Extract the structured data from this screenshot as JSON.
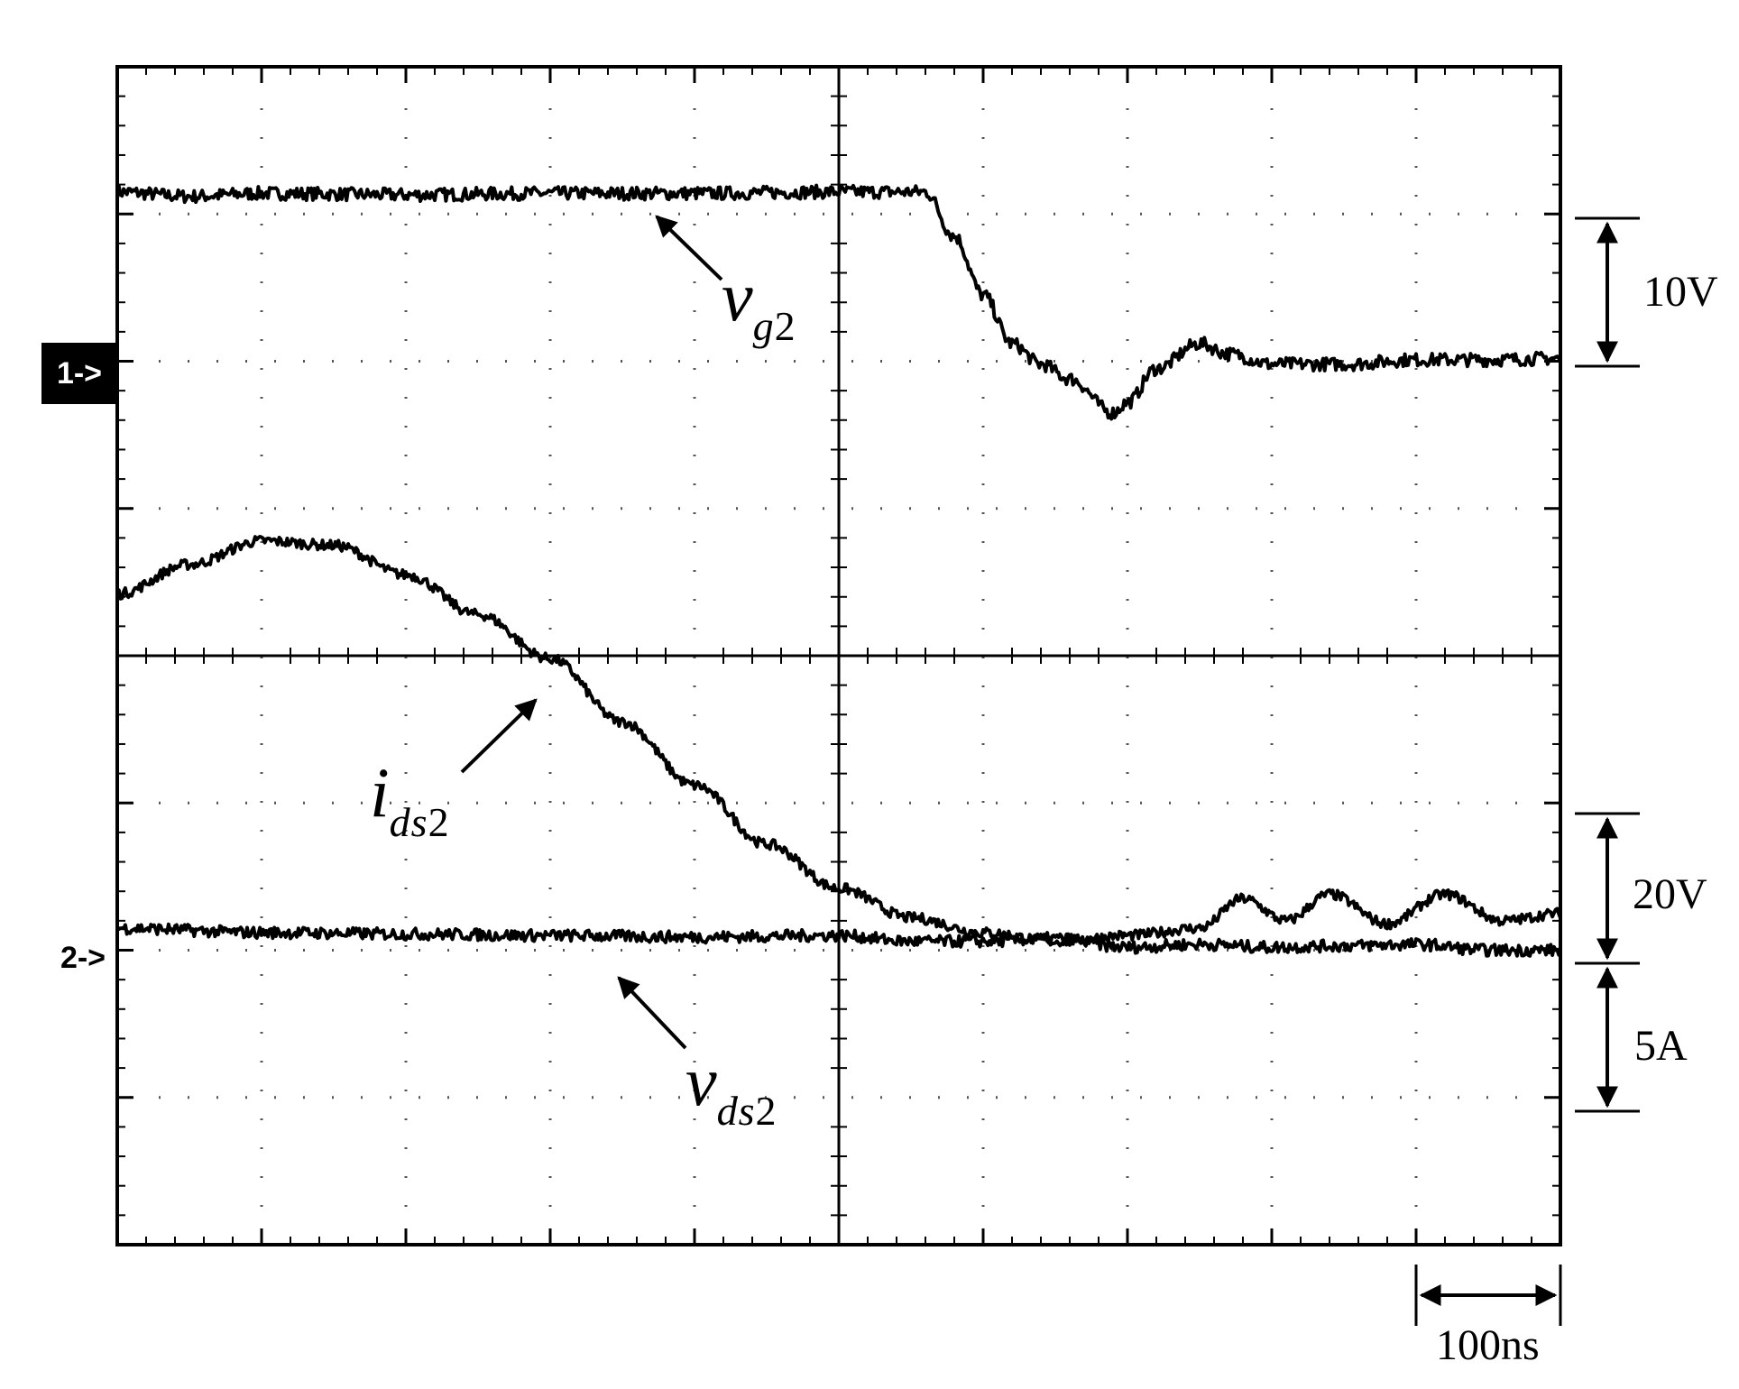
{
  "chart_data": {
    "type": "line",
    "divisions": {
      "x": 10,
      "y": 8,
      "minor_per_division": 5
    },
    "grid": true,
    "channel_markers": [
      {
        "label": "1->",
        "style": "inverted"
      },
      {
        "label": "2->",
        "style": "plain"
      }
    ],
    "series": [
      {
        "name": "v",
        "sub": "g",
        "num": "2",
        "scale": "10V/div",
        "reference_marker": "1->",
        "x_div": [
          0,
          0.5,
          1,
          2,
          3,
          4,
          5,
          5.6,
          5.8,
          6.0,
          6.2,
          6.4,
          6.6,
          6.9,
          7.0,
          7.2,
          7.5,
          7.7,
          8.0,
          8.5,
          9.0,
          9.5,
          10
        ],
        "y_div": [
          1.15,
          1.12,
          1.14,
          1.13,
          1.14,
          1.14,
          1.15,
          1.15,
          0.85,
          0.45,
          0.12,
          -0.02,
          -0.12,
          -0.35,
          -0.28,
          -0.05,
          0.12,
          0.05,
          -0.02,
          -0.02,
          0.01,
          0.01,
          0.02
        ]
      },
      {
        "name": "i",
        "sub": "ds",
        "num": "2",
        "scale": "5A/div",
        "reference_marker": "2->",
        "x_div": [
          0,
          0.5,
          1,
          1.5,
          2,
          2.5,
          3,
          3.5,
          4,
          4.5,
          5,
          5.5,
          6,
          6.5,
          7,
          7.5,
          7.8,
          8.1,
          8.4,
          8.8,
          9.2,
          9.6,
          10
        ],
        "y_div": [
          2.42,
          2.62,
          2.78,
          2.75,
          2.55,
          2.28,
          1.98,
          1.55,
          1.12,
          0.72,
          0.42,
          0.22,
          0.12,
          0.06,
          0.1,
          0.15,
          0.35,
          0.2,
          0.38,
          0.18,
          0.38,
          0.2,
          0.25
        ]
      },
      {
        "name": "v",
        "sub": "ds",
        "num": "2",
        "scale": "20V/div",
        "reference_marker": "2->",
        "x_div": [
          0,
          1,
          2,
          3,
          4,
          5,
          5.5,
          6,
          6.5,
          7,
          7.5,
          8,
          8.5,
          9,
          9.5,
          10
        ],
        "y_div": [
          0.15,
          0.12,
          0.11,
          0.1,
          0.09,
          0.1,
          0.06,
          0.06,
          0.08,
          0.02,
          0.04,
          0.02,
          0.03,
          0.04,
          0.0,
          0.0
        ]
      }
    ],
    "scale_labels": {
      "ch1": "10V",
      "ch2_voltage": "20V",
      "ch2_current": "5A",
      "time": "100ns"
    }
  }
}
